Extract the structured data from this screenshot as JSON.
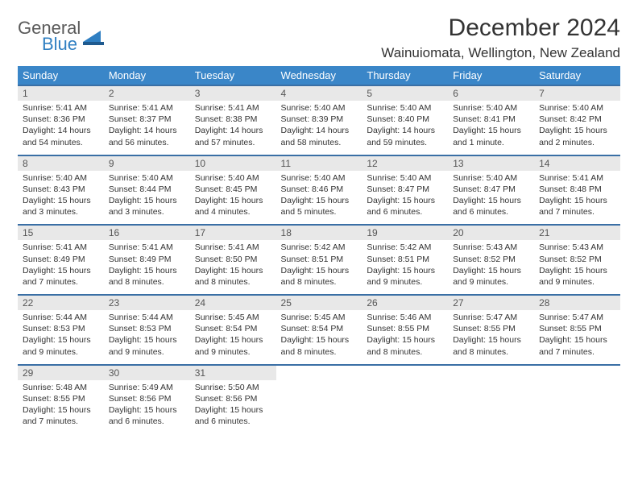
{
  "logo": {
    "word1": "General",
    "word2": "Blue"
  },
  "title": "December 2024",
  "location": "Wainuiomata, Wellington, New Zealand",
  "colors": {
    "header_bg": "#3a86c8",
    "header_text": "#ffffff",
    "daynum_bg": "#e8e8e8",
    "row_border": "#3a6fa5",
    "logo_gray": "#5a5a5a",
    "logo_blue": "#2f7fc2"
  },
  "weekdays": [
    "Sunday",
    "Monday",
    "Tuesday",
    "Wednesday",
    "Thursday",
    "Friday",
    "Saturday"
  ],
  "weeks": [
    {
      "days": [
        {
          "n": "1",
          "sunrise": "5:41 AM",
          "sunset": "8:36 PM",
          "daylight": "14 hours and 54 minutes."
        },
        {
          "n": "2",
          "sunrise": "5:41 AM",
          "sunset": "8:37 PM",
          "daylight": "14 hours and 56 minutes."
        },
        {
          "n": "3",
          "sunrise": "5:41 AM",
          "sunset": "8:38 PM",
          "daylight": "14 hours and 57 minutes."
        },
        {
          "n": "4",
          "sunrise": "5:40 AM",
          "sunset": "8:39 PM",
          "daylight": "14 hours and 58 minutes."
        },
        {
          "n": "5",
          "sunrise": "5:40 AM",
          "sunset": "8:40 PM",
          "daylight": "14 hours and 59 minutes."
        },
        {
          "n": "6",
          "sunrise": "5:40 AM",
          "sunset": "8:41 PM",
          "daylight": "15 hours and 1 minute."
        },
        {
          "n": "7",
          "sunrise": "5:40 AM",
          "sunset": "8:42 PM",
          "daylight": "15 hours and 2 minutes."
        }
      ]
    },
    {
      "days": [
        {
          "n": "8",
          "sunrise": "5:40 AM",
          "sunset": "8:43 PM",
          "daylight": "15 hours and 3 minutes."
        },
        {
          "n": "9",
          "sunrise": "5:40 AM",
          "sunset": "8:44 PM",
          "daylight": "15 hours and 3 minutes."
        },
        {
          "n": "10",
          "sunrise": "5:40 AM",
          "sunset": "8:45 PM",
          "daylight": "15 hours and 4 minutes."
        },
        {
          "n": "11",
          "sunrise": "5:40 AM",
          "sunset": "8:46 PM",
          "daylight": "15 hours and 5 minutes."
        },
        {
          "n": "12",
          "sunrise": "5:40 AM",
          "sunset": "8:47 PM",
          "daylight": "15 hours and 6 minutes."
        },
        {
          "n": "13",
          "sunrise": "5:40 AM",
          "sunset": "8:47 PM",
          "daylight": "15 hours and 6 minutes."
        },
        {
          "n": "14",
          "sunrise": "5:41 AM",
          "sunset": "8:48 PM",
          "daylight": "15 hours and 7 minutes."
        }
      ]
    },
    {
      "days": [
        {
          "n": "15",
          "sunrise": "5:41 AM",
          "sunset": "8:49 PM",
          "daylight": "15 hours and 7 minutes."
        },
        {
          "n": "16",
          "sunrise": "5:41 AM",
          "sunset": "8:49 PM",
          "daylight": "15 hours and 8 minutes."
        },
        {
          "n": "17",
          "sunrise": "5:41 AM",
          "sunset": "8:50 PM",
          "daylight": "15 hours and 8 minutes."
        },
        {
          "n": "18",
          "sunrise": "5:42 AM",
          "sunset": "8:51 PM",
          "daylight": "15 hours and 8 minutes."
        },
        {
          "n": "19",
          "sunrise": "5:42 AM",
          "sunset": "8:51 PM",
          "daylight": "15 hours and 9 minutes."
        },
        {
          "n": "20",
          "sunrise": "5:43 AM",
          "sunset": "8:52 PM",
          "daylight": "15 hours and 9 minutes."
        },
        {
          "n": "21",
          "sunrise": "5:43 AM",
          "sunset": "8:52 PM",
          "daylight": "15 hours and 9 minutes."
        }
      ]
    },
    {
      "days": [
        {
          "n": "22",
          "sunrise": "5:44 AM",
          "sunset": "8:53 PM",
          "daylight": "15 hours and 9 minutes."
        },
        {
          "n": "23",
          "sunrise": "5:44 AM",
          "sunset": "8:53 PM",
          "daylight": "15 hours and 9 minutes."
        },
        {
          "n": "24",
          "sunrise": "5:45 AM",
          "sunset": "8:54 PM",
          "daylight": "15 hours and 9 minutes."
        },
        {
          "n": "25",
          "sunrise": "5:45 AM",
          "sunset": "8:54 PM",
          "daylight": "15 hours and 8 minutes."
        },
        {
          "n": "26",
          "sunrise": "5:46 AM",
          "sunset": "8:55 PM",
          "daylight": "15 hours and 8 minutes."
        },
        {
          "n": "27",
          "sunrise": "5:47 AM",
          "sunset": "8:55 PM",
          "daylight": "15 hours and 8 minutes."
        },
        {
          "n": "28",
          "sunrise": "5:47 AM",
          "sunset": "8:55 PM",
          "daylight": "15 hours and 7 minutes."
        }
      ]
    },
    {
      "days": [
        {
          "n": "29",
          "sunrise": "5:48 AM",
          "sunset": "8:55 PM",
          "daylight": "15 hours and 7 minutes."
        },
        {
          "n": "30",
          "sunrise": "5:49 AM",
          "sunset": "8:56 PM",
          "daylight": "15 hours and 6 minutes."
        },
        {
          "n": "31",
          "sunrise": "5:50 AM",
          "sunset": "8:56 PM",
          "daylight": "15 hours and 6 minutes."
        },
        null,
        null,
        null,
        null
      ]
    }
  ],
  "labels": {
    "sunrise": "Sunrise:",
    "sunset": "Sunset:",
    "daylight": "Daylight:"
  }
}
